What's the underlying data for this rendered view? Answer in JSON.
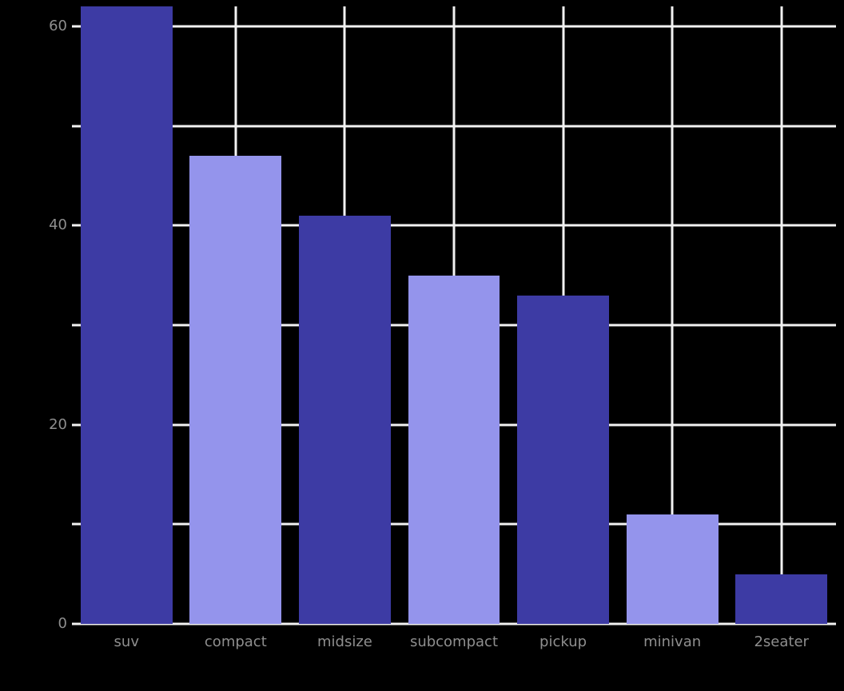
{
  "chart_data": {
    "type": "bar",
    "title": "",
    "xlabel": "",
    "ylabel": "",
    "categories": [
      "suv",
      "compact",
      "midsize",
      "subcompact",
      "pickup",
      "minivan",
      "2seater"
    ],
    "values": [
      62,
      47,
      41,
      35,
      33,
      11,
      5
    ],
    "bar_colors": [
      "#3d3ba4",
      "#9494ec",
      "#3d3ba4",
      "#9494ec",
      "#3d3ba4",
      "#9494ec",
      "#3d3ba4"
    ],
    "ylim": [
      0,
      62
    ],
    "yticks": [
      0,
      20,
      40,
      60
    ],
    "grid_y_values": [
      0,
      10,
      20,
      30,
      40,
      50,
      60
    ],
    "grid_on": true,
    "grid_color": "#f2f2f2",
    "background_color": "#000000",
    "tick_label_color": "#8e8e8e",
    "legend": "none",
    "bar_width_fraction": 0.84
  }
}
